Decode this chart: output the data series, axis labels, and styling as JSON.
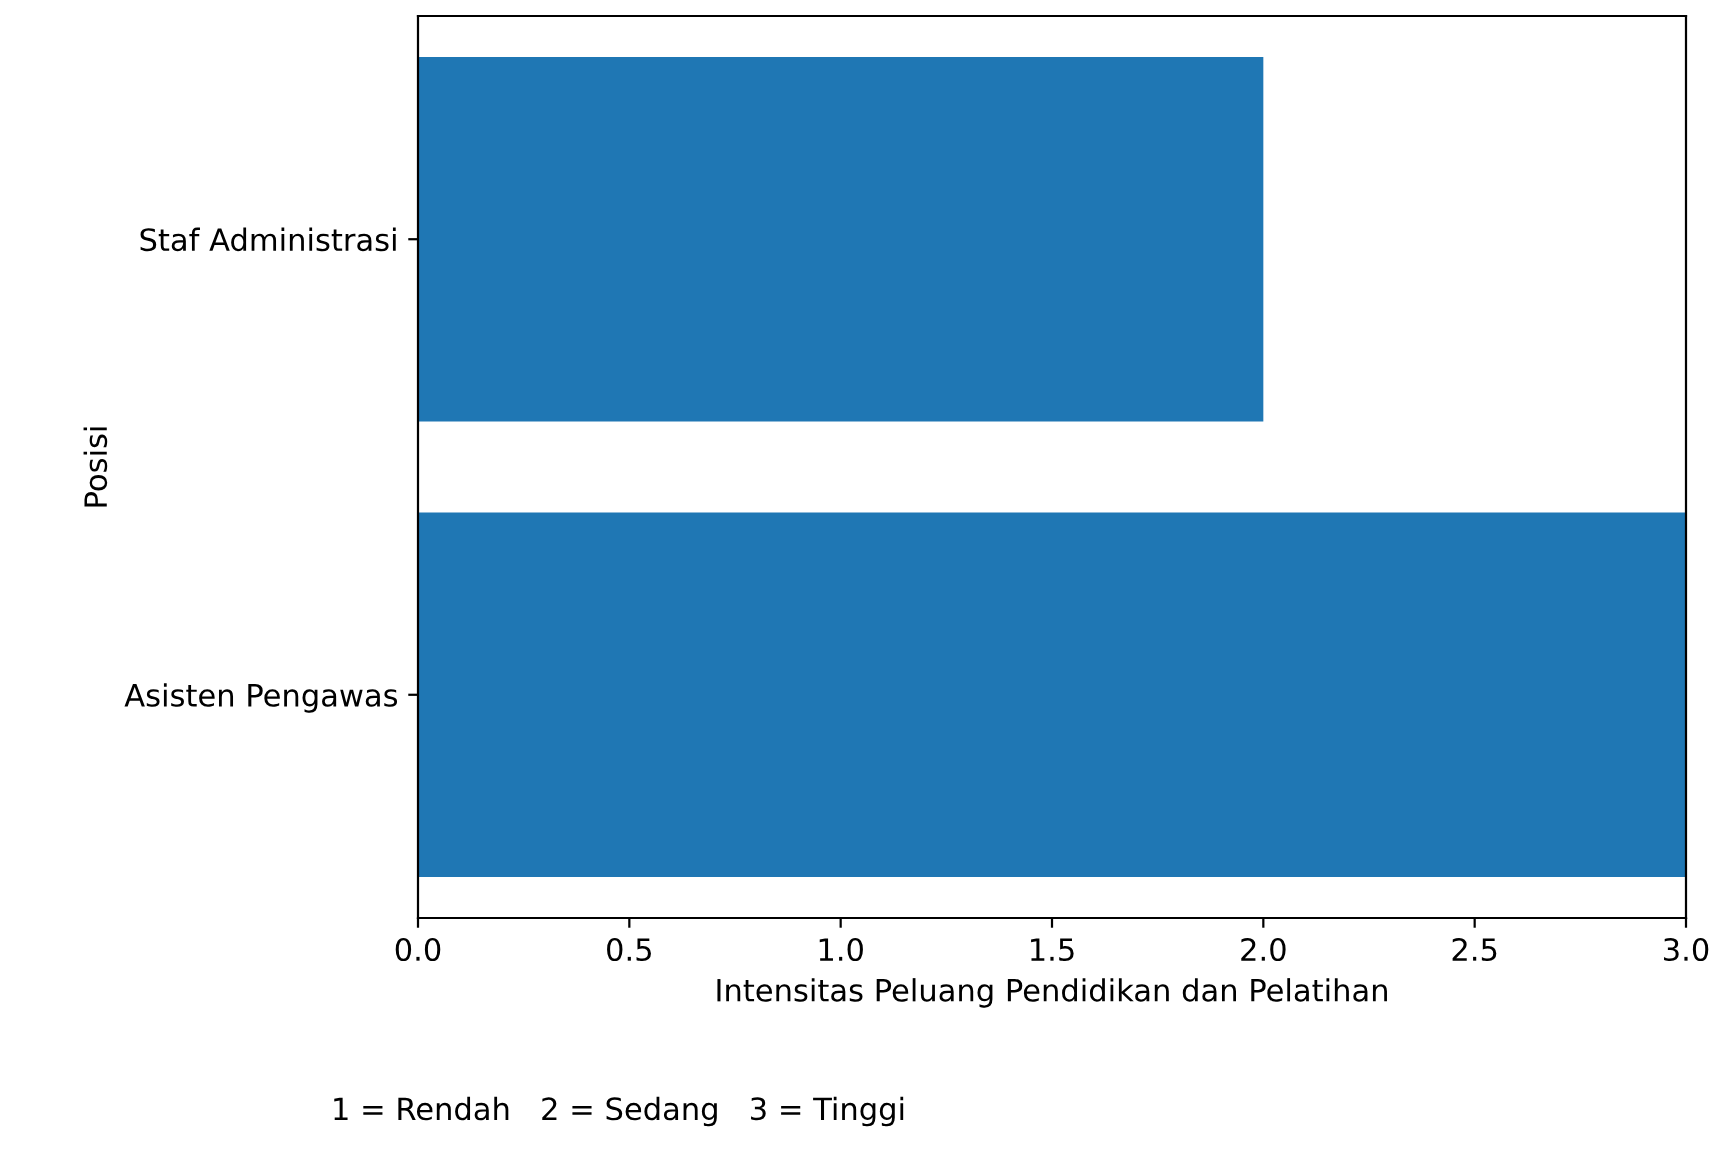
{
  "chart_data": {
    "type": "bar",
    "orientation": "horizontal",
    "categories": [
      "Staf Administrasi",
      "Asisten Pengawas"
    ],
    "values": [
      2,
      3
    ],
    "color": "#1f77b4",
    "xlabel": "Intensitas Peluang Pendidikan dan Pelatihan",
    "ylabel": "Posisi",
    "xlim": [
      0,
      3
    ],
    "xticks": [
      {
        "value": 0,
        "label": "0.0"
      },
      0.5,
      {
        "value": 1,
        "label": "1.0"
      },
      1.5,
      {
        "value": 2,
        "label": "2.0"
      },
      2.5,
      {
        "value": 3,
        "label": "3.0"
      }
    ],
    "annotations": [
      "1 = Rendah   2 = Sedang   3 = Tinggi"
    ]
  }
}
